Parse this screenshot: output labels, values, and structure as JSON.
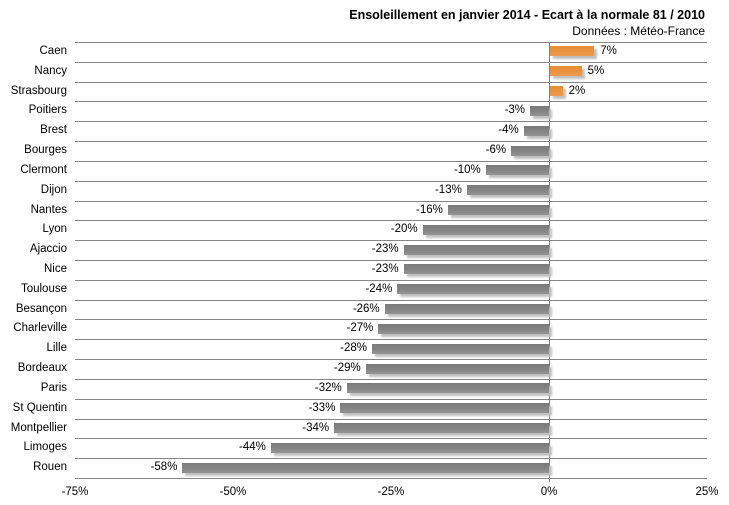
{
  "chart_data": {
    "type": "bar",
    "orientation": "horizontal",
    "title": "Ensoleillement en janvier 2014 - Ecart à la normale 81 / 2010",
    "subtitle": "Données : Météo-France",
    "categories": [
      "Caen",
      "Nancy",
      "Strasbourg",
      "Poitiers",
      "Brest",
      "Bourges",
      "Clermont",
      "Dijon",
      "Nantes",
      "Lyon",
      "Ajaccio",
      "Nice",
      "Toulouse",
      "Besançon",
      "Charleville",
      "Lille",
      "Bordeaux",
      "Paris",
      "St Quentin",
      "Montpellier",
      "Limoges",
      "Rouen"
    ],
    "values": [
      7,
      5,
      2,
      -3,
      -4,
      -6,
      -10,
      -13,
      -16,
      -20,
      -23,
      -23,
      -24,
      -26,
      -27,
      -28,
      -29,
      -32,
      -33,
      -34,
      -44,
      -58
    ],
    "value_labels": [
      "7%",
      "5%",
      "2%",
      "-3%",
      "-4%",
      "-6%",
      "-10%",
      "-13%",
      "-16%",
      "-20%",
      "-23%",
      "-23%",
      "-24%",
      "-26%",
      "-27%",
      "-28%",
      "-29%",
      "-32%",
      "-33%",
      "-34%",
      "-44%",
      "-58%"
    ],
    "xlabel": "",
    "ylabel": "",
    "xlim": [
      -75,
      25
    ],
    "x_ticks": [
      {
        "value": -75,
        "label": "-75%"
      },
      {
        "value": -50,
        "label": "-50%"
      },
      {
        "value": -25,
        "label": "-25%"
      },
      {
        "value": 0,
        "label": "0%"
      },
      {
        "value": 25,
        "label": "25%"
      }
    ],
    "grid": "horizontal-row-separators",
    "legend": "none",
    "colors": {
      "positive_bar": "#e8913d",
      "negative_bar": "#7f7f7f",
      "gridline": "#868686",
      "bar_shadow": "#bfbfbf",
      "text": "#000000",
      "background": "#ffffff"
    }
  }
}
